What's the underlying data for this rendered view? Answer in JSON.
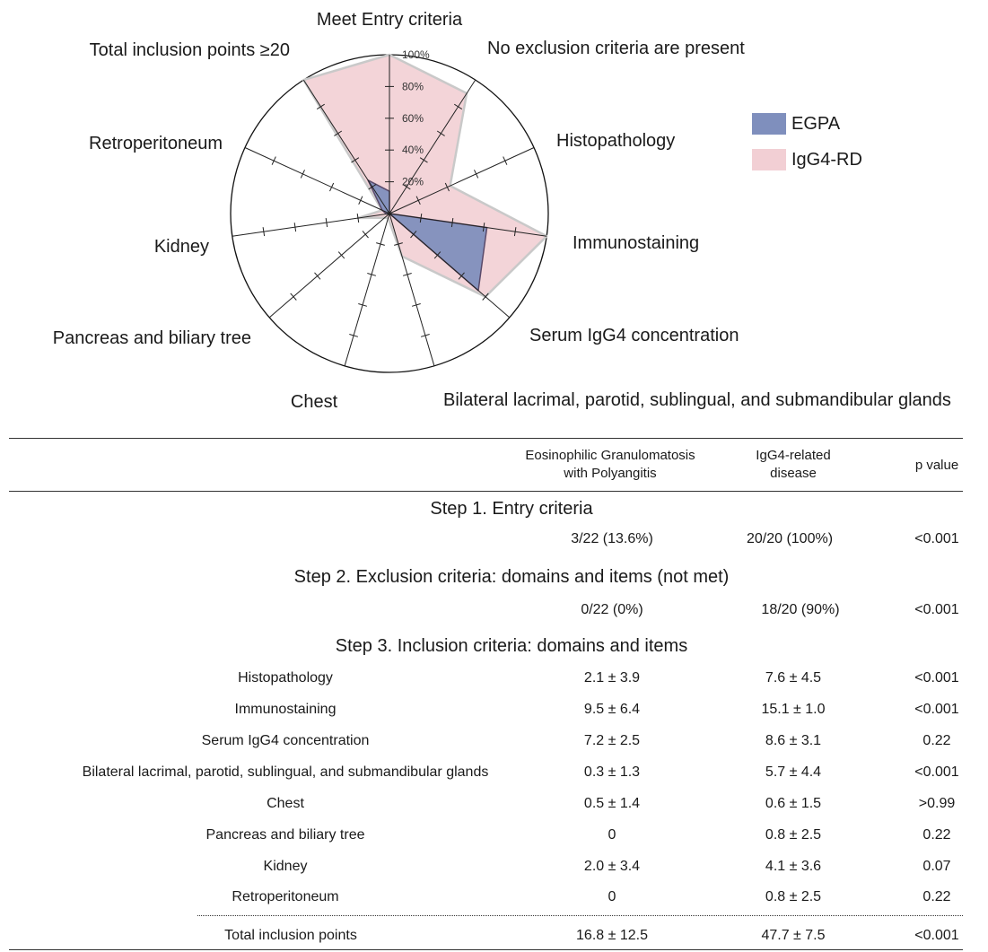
{
  "chart_data": {
    "type": "radar",
    "axes": [
      "Meet Entry criteria",
      "No exclusion criteria are present",
      "Histopathology",
      "Immunostaining",
      "Serum IgG4 concentration",
      "Bilateral lacrimal, parotid, sublingual, and submandibular glands",
      "Chest",
      "Pancreas and biliary tree",
      "Kidney",
      "Retroperitoneum",
      "Total inclusion points ≥20"
    ],
    "ticks": [
      "20%",
      "40%",
      "60%",
      "80%",
      "100%"
    ],
    "range": [
      0,
      100
    ],
    "legend_position": "right",
    "series": [
      {
        "name": "EGPA",
        "color": "#7f8fbd",
        "stroke": "#5a4a6a",
        "values": [
          14,
          0,
          0,
          62,
          74,
          0,
          0,
          0,
          2,
          5,
          25
        ]
      },
      {
        "name": "IgG4-RD",
        "color": "#f2cfd4",
        "stroke": "#c9c9c9",
        "values": [
          100,
          90,
          42,
          100,
          80,
          28,
          3,
          4,
          20,
          5,
          100
        ]
      }
    ]
  },
  "table": {
    "headers": {
      "egpa": [
        "Eosinophilic Granulomatosis",
        "with Polyangitis"
      ],
      "igg4": [
        "IgG4-related",
        "disease"
      ],
      "p": "p value"
    },
    "step1": {
      "title": "Step 1. Entry criteria",
      "egpa": "3/22 (13.6%)",
      "igg4": "20/20 (100%)",
      "p": "<0.001"
    },
    "step2": {
      "title": "Step 2. Exclusion criteria: domains and items (not met)",
      "egpa": "0/22 (0%)",
      "igg4": "18/20 (90%)",
      "p": "<0.001"
    },
    "step3": {
      "title": "Step 3. Inclusion criteria: domains and items"
    },
    "rows": [
      {
        "label": "Histopathology",
        "egpa": "2.1 ± 3.9",
        "igg4": "7.6 ± 4.5",
        "p": "<0.001"
      },
      {
        "label": "Immunostaining",
        "egpa": "9.5 ± 6.4",
        "igg4": "15.1 ± 1.0",
        "p": "<0.001"
      },
      {
        "label": "Serum IgG4 concentration",
        "egpa": "7.2 ± 2.5",
        "igg4": "8.6 ± 3.1",
        "p": "0.22"
      },
      {
        "label": "Bilateral lacrimal, parotid, sublingual, and submandibular glands",
        "egpa": "0.3 ± 1.3",
        "igg4": "5.7 ± 4.4",
        "p": "<0.001"
      },
      {
        "label": "Chest",
        "egpa": "0.5 ± 1.4",
        "igg4": "0.6 ± 1.5",
        "p": ">0.99"
      },
      {
        "label": "Pancreas and biliary tree",
        "egpa": "0",
        "igg4": "0.8 ± 2.5",
        "p": "0.22"
      },
      {
        "label": "Kidney",
        "egpa": "2.0 ± 3.4",
        "igg4": "4.1 ± 3.6",
        "p": "0.07"
      },
      {
        "label": "Retroperitoneum",
        "egpa": "0",
        "igg4": "0.8 ± 2.5",
        "p": "0.22"
      }
    ],
    "total": {
      "label": "Total inclusion points",
      "egpa": "16.8 ± 12.5",
      "igg4": "47.7 ± 7.5",
      "p": "<0.001"
    }
  }
}
